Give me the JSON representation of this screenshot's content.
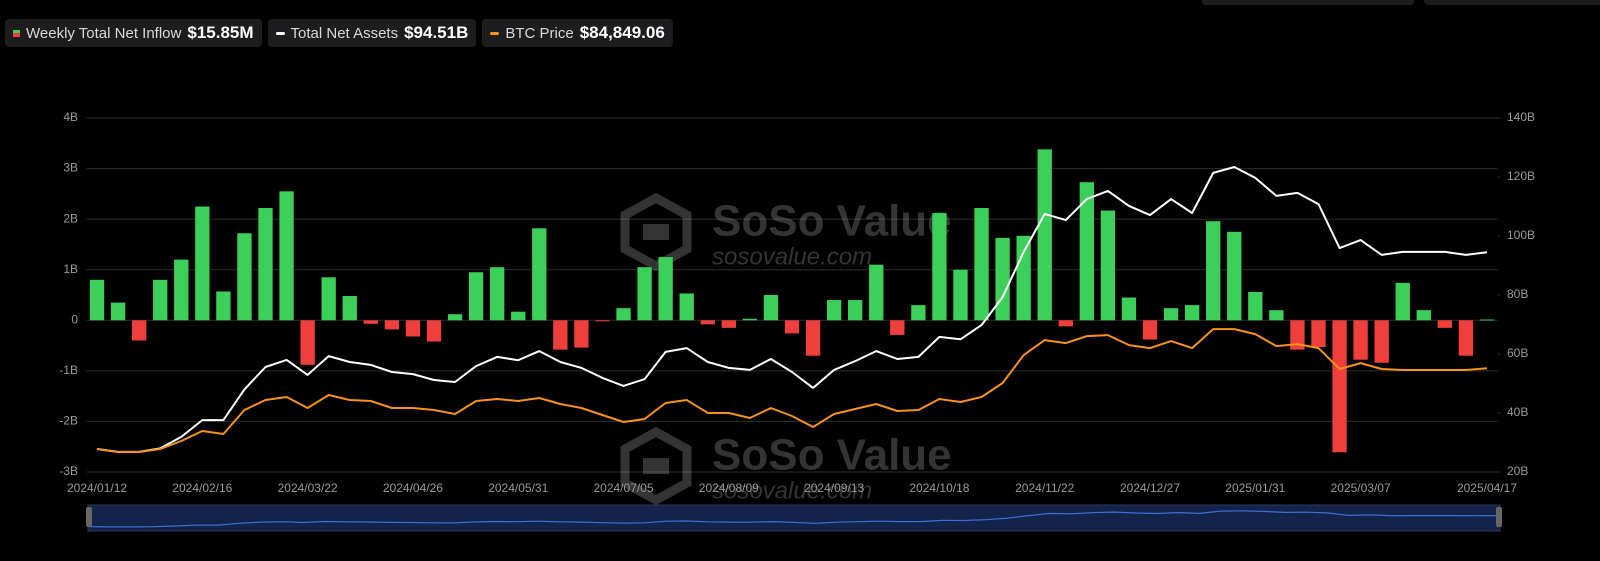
{
  "chart_data": {
    "type": "bar-line",
    "watermark": {
      "brand": "SoSo Value",
      "url": "sosovalue.com"
    },
    "categories": [
      "2024/01/12",
      null,
      null,
      null,
      null,
      "2024/02/16",
      null,
      null,
      null,
      null,
      "2024/03/22",
      null,
      null,
      null,
      null,
      "2024/04/26",
      null,
      null,
      null,
      null,
      "2024/05/31",
      null,
      null,
      null,
      null,
      "2024/07/05",
      null,
      null,
      null,
      null,
      "2024/08/09",
      null,
      null,
      null,
      null,
      "2024/09/13",
      null,
      null,
      null,
      null,
      "2024/10/18",
      null,
      null,
      null,
      null,
      "2024/11/22",
      null,
      null,
      null,
      null,
      "2024/12/27",
      null,
      null,
      null,
      null,
      "2025/01/31",
      null,
      null,
      null,
      null,
      "2025/03/07",
      null,
      null,
      null,
      null,
      null,
      "2025/04/17"
    ],
    "series": [
      {
        "name": "Weekly Total Net Inflow",
        "header_value": "$15.85M",
        "type": "bar",
        "axis": "y",
        "color": "#3ccf5a",
        "negative_color": "#ef3f3c",
        "values": [
          0.8,
          0.35,
          -0.4,
          0.8,
          1.2,
          2.25,
          0.57,
          1.72,
          2.22,
          2.55,
          -0.88,
          0.85,
          0.48,
          -0.07,
          -0.18,
          -0.32,
          -0.42,
          0.12,
          0.95,
          1.05,
          0.17,
          1.82,
          -0.58,
          -0.54,
          -0.02,
          0.24,
          1.05,
          1.25,
          0.53,
          -0.08,
          -0.15,
          0.03,
          0.5,
          -0.26,
          -0.7,
          0.4,
          0.4,
          1.1,
          -0.29,
          0.3,
          2.12,
          1.0,
          2.22,
          1.63,
          1.67,
          3.38,
          -0.12,
          2.73,
          2.17,
          0.45,
          -0.38,
          0.24,
          0.3,
          1.96,
          1.75,
          0.56,
          0.2,
          -0.58,
          -0.53,
          -2.61,
          -0.78,
          -0.84,
          0.74,
          0.2,
          -0.15,
          -0.7,
          0.01585
        ]
      },
      {
        "name": "Total Net Assets",
        "header_value": "$94.51B",
        "type": "line",
        "axis": "y2",
        "color": "#ffffff",
        "values": [
          27.8,
          26.8,
          26.8,
          28,
          31.9,
          37.6,
          37.6,
          48,
          55.6,
          58,
          52.9,
          59.3,
          57.3,
          56.3,
          53.9,
          53.2,
          51.2,
          50.5,
          55.9,
          59,
          57.9,
          61,
          57.3,
          55.3,
          51.9,
          49.2,
          51.5,
          60.7,
          62,
          57.3,
          55.3,
          54.6,
          58.3,
          53.9,
          48.5,
          54.6,
          57.6,
          61,
          58.3,
          59,
          65.8,
          65,
          69.8,
          79.3,
          94.6,
          107.5,
          105.4,
          112.5,
          115.3,
          110.2,
          107.1,
          112.5,
          107.8,
          121.4,
          123.4,
          119.7,
          113.6,
          114.6,
          110.8,
          95.9,
          98.6,
          93.6,
          94.6,
          94.6,
          94.6,
          93.6,
          94.51
        ]
      },
      {
        "name": "BTC Price",
        "header_value": "$84,849.06",
        "type": "line",
        "axis": "y3",
        "color": "#f7931a",
        "values": [
          46040,
          44600,
          44600,
          46040,
          49880,
          54680,
          53240,
          64760,
          69560,
          71000,
          65720,
          71960,
          69560,
          69080,
          65720,
          65720,
          64760,
          62840,
          69080,
          70040,
          69080,
          70520,
          67640,
          65720,
          62360,
          59000,
          60440,
          68120,
          69560,
          63320,
          63320,
          60920,
          65720,
          61880,
          56600,
          62840,
          65240,
          67640,
          64280,
          64760,
          70040,
          68600,
          71000,
          77720,
          91160,
          98360,
          96920,
          100280,
          100760,
          95960,
          94520,
          97880,
          94520,
          103640,
          103640,
          101240,
          95480,
          96440,
          94520,
          84440,
          87320,
          84440,
          83960,
          83960,
          83960,
          83960,
          84849.06
        ]
      }
    ],
    "ylim": [
      -3,
      4
    ],
    "yticks": [
      {
        "value": 4,
        "label": "4B"
      },
      {
        "value": 3,
        "label": "3B"
      },
      {
        "value": 2,
        "label": "2B"
      },
      {
        "value": 1,
        "label": "1B"
      },
      0,
      {
        "value": -1,
        "label": "-1B"
      },
      {
        "value": -2,
        "label": "-2B"
      },
      {
        "value": -3,
        "label": "-3B"
      }
    ],
    "y2lim": [
      20,
      140
    ],
    "y2ticks": [
      {
        "value": 140,
        "label": "140B"
      },
      {
        "value": 120,
        "label": "120B"
      },
      {
        "value": 100,
        "label": "100B"
      },
      {
        "value": 80,
        "label": "80B"
      },
      {
        "value": 60,
        "label": "60B"
      },
      {
        "value": 40,
        "label": "40B"
      },
      {
        "value": 20,
        "label": "20B"
      }
    ],
    "y3lim": [
      35000,
      205000
    ],
    "grid": true
  }
}
